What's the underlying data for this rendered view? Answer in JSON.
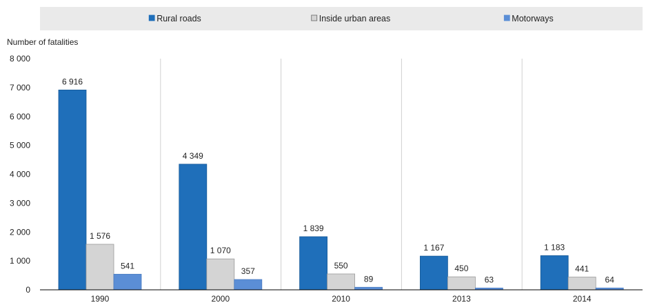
{
  "chart_data": {
    "type": "bar",
    "title": "",
    "xlabel": "",
    "ylabel": "Number of fatalities",
    "ylim": [
      0,
      8000
    ],
    "yticks": [
      0,
      1000,
      2000,
      3000,
      4000,
      5000,
      6000,
      7000,
      8000
    ],
    "ytick_labels": [
      "0",
      "1 000",
      "2 000",
      "3 000",
      "4 000",
      "5 000",
      "6 000",
      "7 000",
      "8 000"
    ],
    "categories": [
      "1990",
      "2000",
      "2010",
      "2013",
      "2014"
    ],
    "grid": "vertical separators between categories",
    "legend_position": "top",
    "series": [
      {
        "name": "Rural roads",
        "color": "#1f6fba",
        "values": [
          6916,
          4349,
          1839,
          1167,
          1183
        ],
        "labels": [
          "6 916",
          "4 349",
          "1 839",
          "1 167",
          "1 183"
        ]
      },
      {
        "name": "Inside urban areas",
        "color": "#d4d4d4",
        "values": [
          1576,
          1070,
          550,
          450,
          441
        ],
        "labels": [
          "1 576",
          "1 070",
          "550",
          "450",
          "441"
        ]
      },
      {
        "name": "Motorways",
        "color": "#5b8ed6",
        "values": [
          541,
          357,
          89,
          63,
          64
        ],
        "labels": [
          "541",
          "357",
          "89",
          "63",
          "64"
        ]
      }
    ]
  }
}
